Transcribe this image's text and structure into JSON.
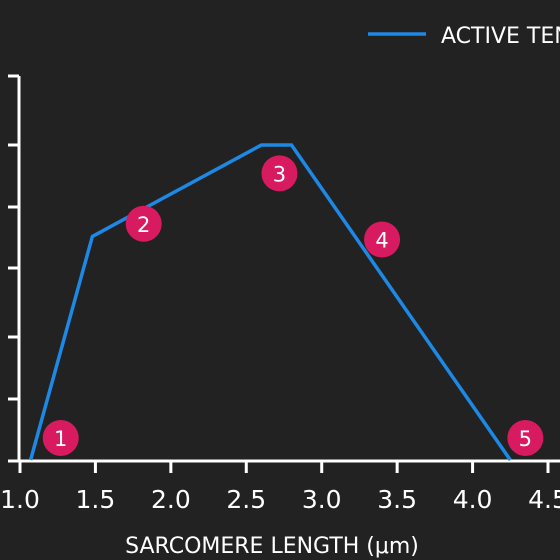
{
  "chart_data": {
    "type": "line",
    "xlabel": "SARCOMERE LENGTH (μm)",
    "ylabel": "",
    "title": "",
    "xlim": [
      1.0,
      4.5
    ],
    "x_ticks": [
      "1.0",
      "1.5",
      "2.0",
      "2.5",
      "3.0",
      "3.5",
      "4.0",
      "4.5"
    ],
    "legend": {
      "position": "top-right",
      "label": "ACTIVE TENSION"
    },
    "series": [
      {
        "name": "ACTIVE TENSION",
        "color": "#1e88e5",
        "points": [
          {
            "x": 1.07,
            "y": 0
          },
          {
            "x": 1.48,
            "y": 0.71
          },
          {
            "x": 2.6,
            "y": 1.0
          },
          {
            "x": 2.8,
            "y": 1.0
          },
          {
            "x": 4.25,
            "y": 0
          }
        ]
      }
    ],
    "annotations": [
      {
        "label": "1",
        "x": 1.27,
        "y": 0.07
      },
      {
        "label": "2",
        "x": 1.82,
        "y": 0.75
      },
      {
        "label": "3",
        "x": 2.72,
        "y": 0.91
      },
      {
        "label": "4",
        "x": 3.4,
        "y": 0.7
      },
      {
        "label": "5",
        "x": 4.35,
        "y": 0.07
      }
    ],
    "annotation_color": "#d81b60"
  }
}
